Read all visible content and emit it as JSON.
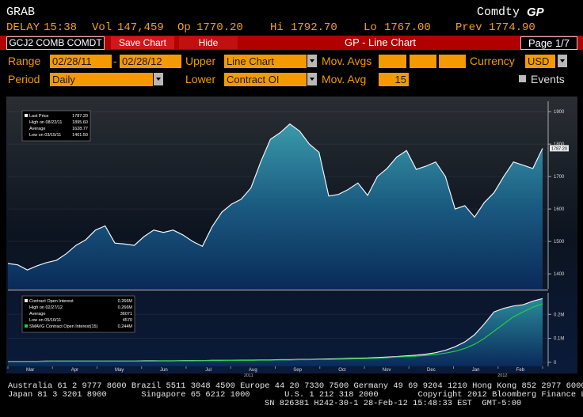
{
  "header": {
    "code": "GRAB",
    "market": "Comdty",
    "function": "GP"
  },
  "quote": {
    "status": "DELAY",
    "time": "15:38",
    "vol_label": "Vol",
    "vol": "147,459",
    "op_label": "Op",
    "op": "1770.20",
    "hi_label": "Hi",
    "hi": "1792.70",
    "lo_label": "Lo",
    "lo": "1767.00",
    "prev_label": "Prev",
    "prev": "1774.90"
  },
  "toolbar": {
    "security": "GCJ2 COMB COMDT",
    "save": "Save Chart",
    "hide": "Hide",
    "title": "GP - Line Chart",
    "page": "Page 1/7"
  },
  "form": {
    "range_label": "Range",
    "start": "02/28/11",
    "sep": "-",
    "end": "02/28/12",
    "upper_label": "Upper",
    "upper": "Line Chart",
    "mov_avgs_label": "Mov. Avgs",
    "currency_label": "Currency",
    "currency": "USD",
    "period_label": "Period",
    "period": "Daily",
    "lower_label": "Lower",
    "lower": "Contract OI",
    "mov_avg_label": "Mov. Avg",
    "mov_avg": "15",
    "events": "Events"
  },
  "chart_data": [
    {
      "type": "area",
      "ylim": [
        1354,
        1932
      ],
      "yticks": [
        1400,
        1500,
        1600,
        1700,
        1800,
        1900
      ],
      "series": [
        {
          "name": "Last Price",
          "color": "#eef6fa",
          "last": "1787.20",
          "values": [
            1432,
            1428,
            1412,
            1425,
            1435,
            1442,
            1462,
            1488,
            1505,
            1535,
            1548,
            1495,
            1492,
            1488,
            1515,
            1535,
            1528,
            1535,
            1520,
            1500,
            1485,
            1545,
            1590,
            1615,
            1630,
            1665,
            1745,
            1815,
            1835,
            1862,
            1840,
            1800,
            1775,
            1640,
            1645,
            1660,
            1680,
            1642,
            1700,
            1725,
            1760,
            1780,
            1722,
            1732,
            1745,
            1700,
            1600,
            1610,
            1575,
            1620,
            1650,
            1700,
            1745,
            1735,
            1725,
            1787.2
          ]
        }
      ],
      "stats": [
        {
          "label": "High on 08/22/11",
          "value": "1895.60"
        },
        {
          "label": "Average",
          "value": "1628.77"
        },
        {
          "label": "Low on 03/15/11",
          "value": "1401.50"
        }
      ]
    },
    {
      "type": "area",
      "ylim": [
        -0.017,
        0.29
      ],
      "yticks": [
        0,
        {
          "value": 0.1,
          "label": "0.1M"
        },
        {
          "value": 0.2,
          "label": "0.2M"
        }
      ],
      "series": [
        {
          "name": "Contract Open Interest",
          "color": "#f4f0f0",
          "last": "0.266M",
          "values": [
            0.004,
            0.004,
            0.004,
            0.004,
            0.005,
            0.005,
            0.005,
            0.005,
            0.005,
            0.005,
            0.005,
            0.005,
            0.005,
            0.005,
            0.006,
            0.006,
            0.006,
            0.006,
            0.007,
            0.007,
            0.007,
            0.008,
            0.008,
            0.008,
            0.009,
            0.009,
            0.01,
            0.01,
            0.011,
            0.011,
            0.012,
            0.012,
            0.013,
            0.014,
            0.015,
            0.016,
            0.017,
            0.018,
            0.02,
            0.022,
            0.024,
            0.027,
            0.03,
            0.034,
            0.04,
            0.05,
            0.065,
            0.085,
            0.115,
            0.16,
            0.21,
            0.225,
            0.235,
            0.24,
            0.255,
            0.266
          ]
        },
        {
          "name": "SMAVG Contract Open Interest(15)",
          "color": "#22cc44",
          "last": "0.244M",
          "values": [
            0.004,
            0.004,
            0.004,
            0.004,
            0.004,
            0.005,
            0.005,
            0.005,
            0.005,
            0.005,
            0.005,
            0.005,
            0.005,
            0.005,
            0.005,
            0.005,
            0.006,
            0.006,
            0.006,
            0.006,
            0.007,
            0.007,
            0.007,
            0.008,
            0.008,
            0.008,
            0.009,
            0.009,
            0.01,
            0.01,
            0.011,
            0.011,
            0.012,
            0.012,
            0.013,
            0.014,
            0.015,
            0.016,
            0.017,
            0.019,
            0.022,
            0.024,
            0.026,
            0.029,
            0.033,
            0.038,
            0.046,
            0.058,
            0.075,
            0.1,
            0.13,
            0.16,
            0.19,
            0.21,
            0.23,
            0.244
          ]
        }
      ],
      "stats": [
        {
          "label": "High on 02/27/12",
          "value": "0.266M"
        },
        {
          "label": "Average",
          "value": "36071"
        },
        {
          "label": "Low on 05/10/11",
          "value": "4570"
        }
      ],
      "x_labels": [
        "Mar",
        "Apr",
        "May",
        "Jun",
        "Jul",
        "Aug",
        "Sep",
        "Oct",
        "Nov",
        "Dec",
        "Jan",
        "Feb"
      ],
      "year_labels": [
        "2011",
        "2012"
      ]
    }
  ],
  "footer": {
    "lines": [
      "Australia 61 2 9777 8600 Brazil 5511 3048 4500 Europe 44 20 7330 7500 Germany 49 69 9204 1210 Hong Kong 852 2977 6000",
      "Japan 81 3 3201 8900       Singapore 65 6212 1000       U.S. 1 212 318 2000        Copyright 2012 Bloomberg Finance L.P.",
      "SN 826381 H242-30-1 28-Feb-12 15:48:33 EST  GMT-5:00"
    ]
  }
}
